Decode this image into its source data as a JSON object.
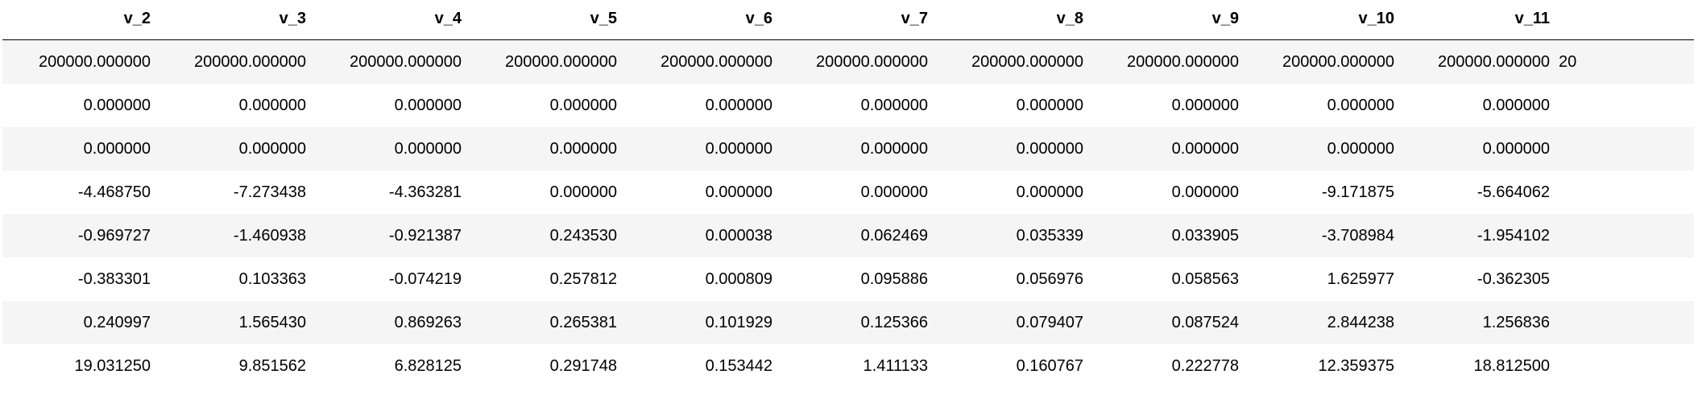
{
  "table": {
    "columns": [
      "v_2",
      "v_3",
      "v_4",
      "v_5",
      "v_6",
      "v_7",
      "v_8",
      "v_9",
      "v_10",
      "v_11"
    ],
    "partial_column_first_row_text": "20",
    "rows": [
      [
        "200000.000000",
        "200000.000000",
        "200000.000000",
        "200000.000000",
        "200000.000000",
        "200000.000000",
        "200000.000000",
        "200000.000000",
        "200000.000000",
        "200000.000000"
      ],
      [
        "0.000000",
        "0.000000",
        "0.000000",
        "0.000000",
        "0.000000",
        "0.000000",
        "0.000000",
        "0.000000",
        "0.000000",
        "0.000000"
      ],
      [
        "0.000000",
        "0.000000",
        "0.000000",
        "0.000000",
        "0.000000",
        "0.000000",
        "0.000000",
        "0.000000",
        "0.000000",
        "0.000000"
      ],
      [
        "-4.468750",
        "-7.273438",
        "-4.363281",
        "0.000000",
        "0.000000",
        "0.000000",
        "0.000000",
        "0.000000",
        "-9.171875",
        "-5.664062"
      ],
      [
        "-0.969727",
        "-1.460938",
        "-0.921387",
        "0.243530",
        "0.000038",
        "0.062469",
        "0.035339",
        "0.033905",
        "-3.708984",
        "-1.954102"
      ],
      [
        "-0.383301",
        "0.103363",
        "-0.074219",
        "0.257812",
        "0.000809",
        "0.095886",
        "0.056976",
        "0.058563",
        "1.625977",
        "-0.362305"
      ],
      [
        "0.240997",
        "1.565430",
        "0.869263",
        "0.265381",
        "0.101929",
        "0.125366",
        "0.079407",
        "0.087524",
        "2.844238",
        "1.256836"
      ],
      [
        "19.031250",
        "9.851562",
        "6.828125",
        "0.291748",
        "0.153442",
        "1.411133",
        "0.160767",
        "0.222778",
        "12.359375",
        "18.812500"
      ]
    ]
  }
}
